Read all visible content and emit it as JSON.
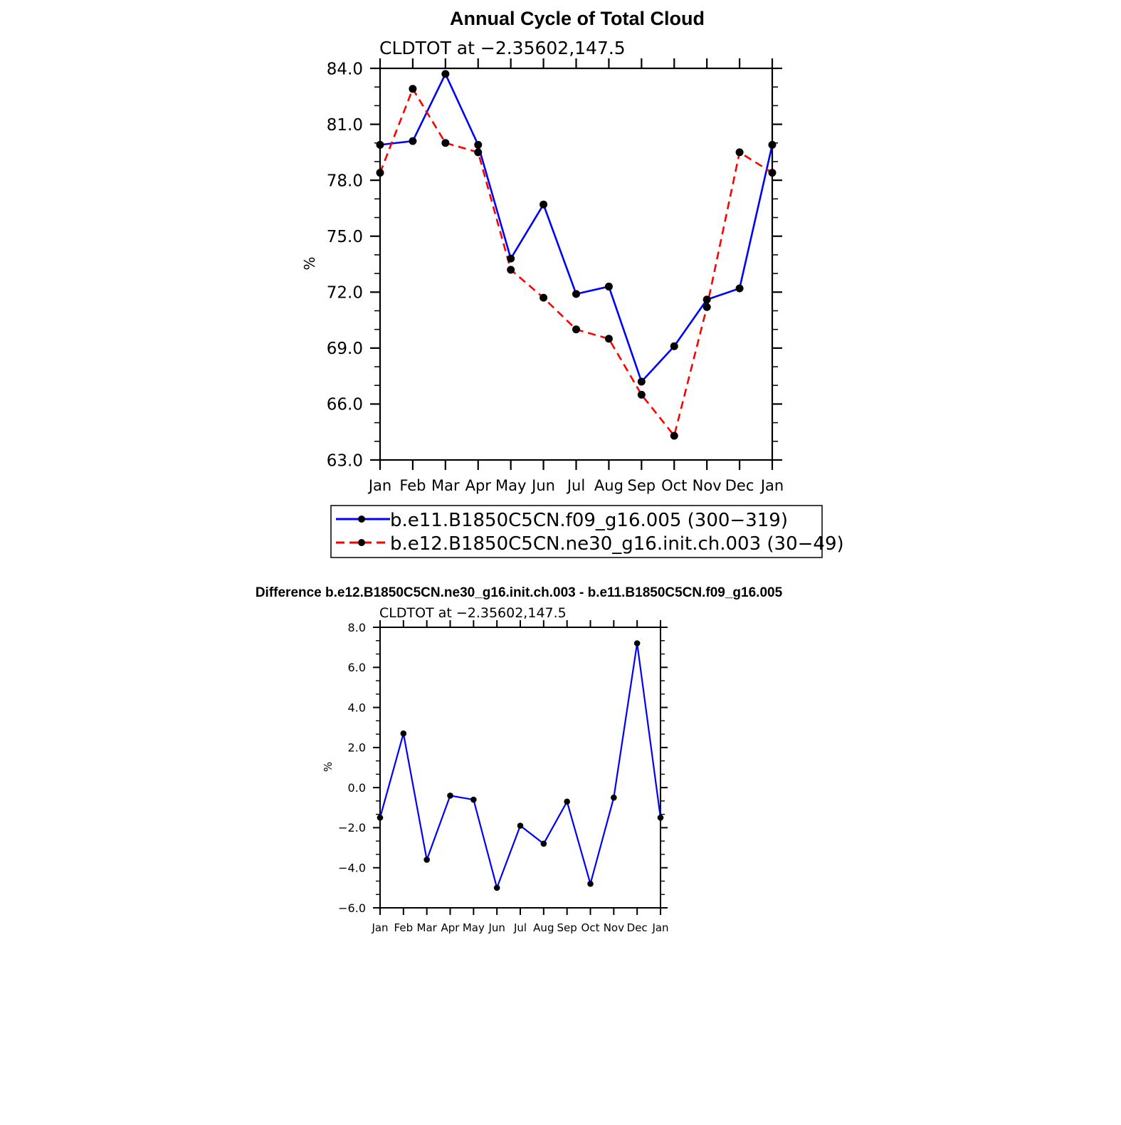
{
  "chart_data": [
    {
      "type": "line",
      "title": "Annual Cycle of Total Cloud",
      "subtitle": "CLDTOT at −2.35602,147.5",
      "ylabel": "%",
      "xlabel": "",
      "categories": [
        "Jan",
        "Feb",
        "Mar",
        "Apr",
        "May",
        "Jun",
        "Jul",
        "Aug",
        "Sep",
        "Oct",
        "Nov",
        "Dec",
        "Jan"
      ],
      "ylim": [
        63.0,
        84.0
      ],
      "yticks": [
        "63.0",
        "66.0",
        "69.0",
        "72.0",
        "75.0",
        "78.0",
        "81.0",
        "84.0"
      ],
      "yticks_values": [
        63,
        66,
        69,
        72,
        75,
        78,
        81,
        84
      ],
      "series": [
        {
          "name": "b.e11.B1850C5CN.f09_g16.005 (300−319)",
          "color": "#0000ff",
          "dash": "solid",
          "values": [
            79.9,
            80.1,
            83.7,
            79.9,
            73.8,
            76.7,
            71.9,
            72.3,
            67.2,
            69.1,
            71.6,
            72.2,
            79.9
          ]
        },
        {
          "name": "b.e12.B1850C5CN.ne30_g16.init.ch.003 (30−49)",
          "color": "#ff0000",
          "dash": "dashed",
          "values": [
            78.4,
            82.9,
            80.0,
            79.5,
            73.2,
            71.7,
            70.0,
            69.5,
            66.5,
            64.3,
            71.2,
            79.5,
            78.4
          ]
        }
      ]
    },
    {
      "type": "line",
      "title": "Difference b.e12.B1850C5CN.ne30_g16.init.ch.003 - b.e11.B1850C5CN.f09_g16.005",
      "subtitle": "CLDTOT at −2.35602,147.5",
      "ylabel": "%",
      "xlabel": "",
      "categories": [
        "Jan",
        "Feb",
        "Mar",
        "Apr",
        "May",
        "Jun",
        "Jul",
        "Aug",
        "Sep",
        "Oct",
        "Nov",
        "Dec",
        "Jan"
      ],
      "ylim": [
        -6.0,
        8.0
      ],
      "yticks": [
        "−6.0",
        "−4.0",
        "−2.0",
        "0.0",
        "2.0",
        "4.0",
        "6.0",
        "8.0"
      ],
      "yticks_values": [
        -6,
        -4,
        -2,
        0,
        2,
        4,
        6,
        8
      ],
      "series": [
        {
          "name": "Difference",
          "color": "#0000ff",
          "dash": "solid",
          "values": [
            -1.5,
            2.7,
            -3.6,
            -0.4,
            -0.6,
            -5.0,
            -1.9,
            -2.8,
            -0.7,
            -4.8,
            -0.5,
            7.2,
            -1.5
          ]
        }
      ]
    }
  ],
  "colors": {
    "series1": "#0000ff",
    "series2": "#ff0000",
    "axis": "#000000",
    "marker": "#000000"
  }
}
